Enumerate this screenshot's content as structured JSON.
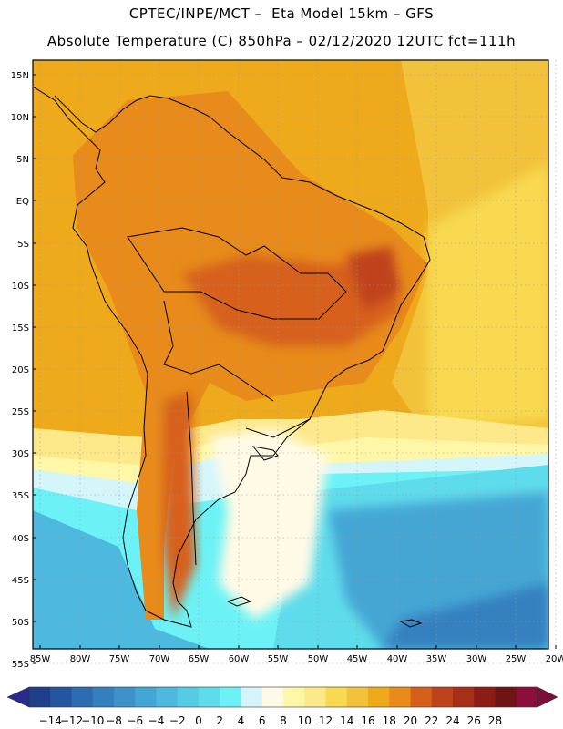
{
  "header": {
    "title_line1": "CPTEC/INPE/MCT –  Eta Model 15km – GFS",
    "title_line2": "Absolute Temperature (C) 850hPa – 02/12/2020 12UTC fct=111h"
  },
  "map": {
    "lat_labels": [
      "15N",
      "10N",
      "5N",
      "EQ",
      "5S",
      "10S",
      "15S",
      "20S",
      "25S",
      "30S",
      "35S",
      "40S",
      "45S",
      "50S",
      "55S"
    ],
    "lon_labels": [
      "85W",
      "80W",
      "75W",
      "70W",
      "65W",
      "60W",
      "55W",
      "50W",
      "45W",
      "40W",
      "35W",
      "30W",
      "25W",
      "20W"
    ],
    "lat_range": [
      15,
      -55
    ],
    "lon_range": [
      -85,
      -20
    ]
  },
  "colorbar": {
    "labels": [
      "-14",
      "-12",
      "-10",
      "-8",
      "-6",
      "-4",
      "-2",
      "0",
      "2",
      "4",
      "6",
      "8",
      "10",
      "12",
      "14",
      "16",
      "18",
      "20",
      "22",
      "24",
      "26",
      "28"
    ],
    "colors": [
      "#1f3f8c",
      "#2456a0",
      "#2c6cb0",
      "#3480bf",
      "#3d93c9",
      "#44a6d4",
      "#4db9de",
      "#55cce6",
      "#5fdcec",
      "#6cf2f6",
      "#d4f6fb",
      "#fffae6",
      "#fff7a8",
      "#fde98a",
      "#f8d94f",
      "#f2c33a",
      "#eeaa1a",
      "#e88b1a",
      "#d6601a",
      "#c0421a",
      "#a62f18",
      "#8c1d16",
      "#6e1414",
      "#8a0f3a"
    ],
    "under_color": "#2a2a8a",
    "over_color": "#7a0f3a"
  }
}
